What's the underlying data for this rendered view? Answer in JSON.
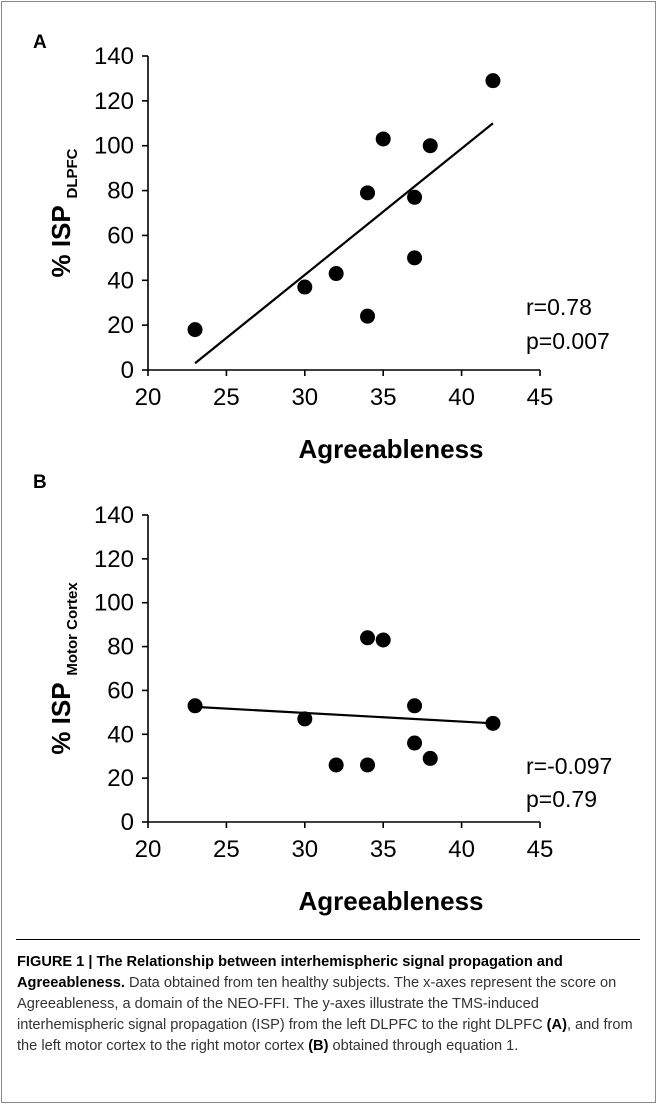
{
  "chart_data": [
    {
      "panel": "A",
      "type": "scatter",
      "xlabel": "Agreeableness",
      "ylabel_main": "% ISP",
      "ylabel_sub": "DLPFC",
      "xlim": [
        20,
        45
      ],
      "ylim": [
        0,
        140
      ],
      "xticks": [
        20,
        25,
        30,
        35,
        40,
        45
      ],
      "yticks": [
        0,
        20,
        40,
        60,
        80,
        100,
        120,
        140
      ],
      "points": [
        {
          "x": 23,
          "y": 18
        },
        {
          "x": 30,
          "y": 37
        },
        {
          "x": 32,
          "y": 43
        },
        {
          "x": 34,
          "y": 79
        },
        {
          "x": 34,
          "y": 24
        },
        {
          "x": 35,
          "y": 103
        },
        {
          "x": 37,
          "y": 77
        },
        {
          "x": 37,
          "y": 50
        },
        {
          "x": 38,
          "y": 100
        },
        {
          "x": 42,
          "y": 129
        }
      ],
      "trendline": {
        "x": [
          23,
          42
        ],
        "y": [
          3,
          110
        ]
      },
      "annotation": [
        "r=0.78",
        "p=0.007"
      ]
    },
    {
      "panel": "B",
      "type": "scatter",
      "xlabel": "Agreeableness",
      "ylabel_main": "% ISP",
      "ylabel_sub": "Motor Cortex",
      "xlim": [
        20,
        45
      ],
      "ylim": [
        0,
        140
      ],
      "xticks": [
        20,
        25,
        30,
        35,
        40,
        45
      ],
      "yticks": [
        0,
        20,
        40,
        60,
        80,
        100,
        120,
        140
      ],
      "points": [
        {
          "x": 23,
          "y": 53
        },
        {
          "x": 30,
          "y": 47
        },
        {
          "x": 32,
          "y": 26
        },
        {
          "x": 34,
          "y": 84
        },
        {
          "x": 34,
          "y": 26
        },
        {
          "x": 35,
          "y": 83
        },
        {
          "x": 37,
          "y": 53
        },
        {
          "x": 37,
          "y": 36
        },
        {
          "x": 38,
          "y": 29
        },
        {
          "x": 42,
          "y": 45
        }
      ],
      "trendline": {
        "x": [
          23,
          42
        ],
        "y": [
          52.5,
          45
        ]
      },
      "annotation": [
        "r=-0.097",
        "p=0.79"
      ]
    }
  ],
  "caption": {
    "head": "FIGURE 1 | The Relationship between interhemispheric signal propagation and Agreeableness.",
    "body_1": " Data obtained from ten healthy subjects. The x-axes represent the score on Agreeableness, a domain of the NEO-FFI. The y-axes illustrate the TMS-induced interhemispheric signal propagation (ISP) from the left DLPFC to the right DLPFC ",
    "ref_a": "(A)",
    "body_2": ", and from the left motor cortex to the right motor cortex ",
    "ref_b": "(B)",
    "body_3": " obtained through equation 1."
  }
}
